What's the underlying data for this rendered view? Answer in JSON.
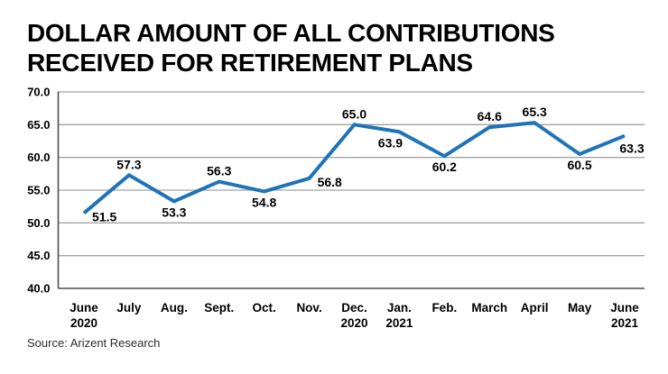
{
  "title": {
    "lines": [
      "DOLLAR AMOUNT OF ALL CONTRIBUTIONS",
      "RECEIVED FOR RETIREMENT PLANS"
    ]
  },
  "source": {
    "text": "Source: Arizent Research"
  },
  "colors": {
    "line": "#1e73b9",
    "grid": "#a3a3a3",
    "axis": "#4f4f4f",
    "text": "#000000",
    "background": "#ffffff"
  },
  "chart_data": {
    "type": "line",
    "title": "DOLLAR AMOUNT OF ALL CONTRIBUTIONS RECEIVED FOR RETIREMENT PLANS",
    "categories": [
      [
        "June",
        "2020"
      ],
      [
        "July"
      ],
      [
        "Aug."
      ],
      [
        "Sept."
      ],
      [
        "Oct."
      ],
      [
        "Nov."
      ],
      [
        "Dec.",
        "2020"
      ],
      [
        "Jan.",
        "2021"
      ],
      [
        "Feb."
      ],
      [
        "March"
      ],
      [
        "April"
      ],
      [
        "May"
      ],
      [
        "June",
        "2021"
      ]
    ],
    "values": [
      51.5,
      57.3,
      53.3,
      56.3,
      54.8,
      56.8,
      65.0,
      63.9,
      60.2,
      64.6,
      65.3,
      60.5,
      63.3
    ],
    "data_labels": [
      "51.5",
      "57.3",
      "53.3",
      "56.3",
      "54.8",
      "56.8",
      "65.0",
      "63.9",
      "60.2",
      "64.6",
      "65.3",
      "60.5",
      "63.3"
    ],
    "label_positions": [
      "right",
      "above",
      "below",
      "above",
      "below",
      "right",
      "above",
      "below-left",
      "below",
      "above",
      "above",
      "below",
      "below-right"
    ],
    "xlabel": "",
    "ylabel": "",
    "ylim": [
      40,
      70
    ],
    "yticks": [
      "70.0",
      "65.0",
      "60.0",
      "55.0",
      "50.0",
      "45.0",
      "40.0"
    ],
    "grid": true,
    "legend": "none",
    "source": "Source: Arizent Research"
  }
}
